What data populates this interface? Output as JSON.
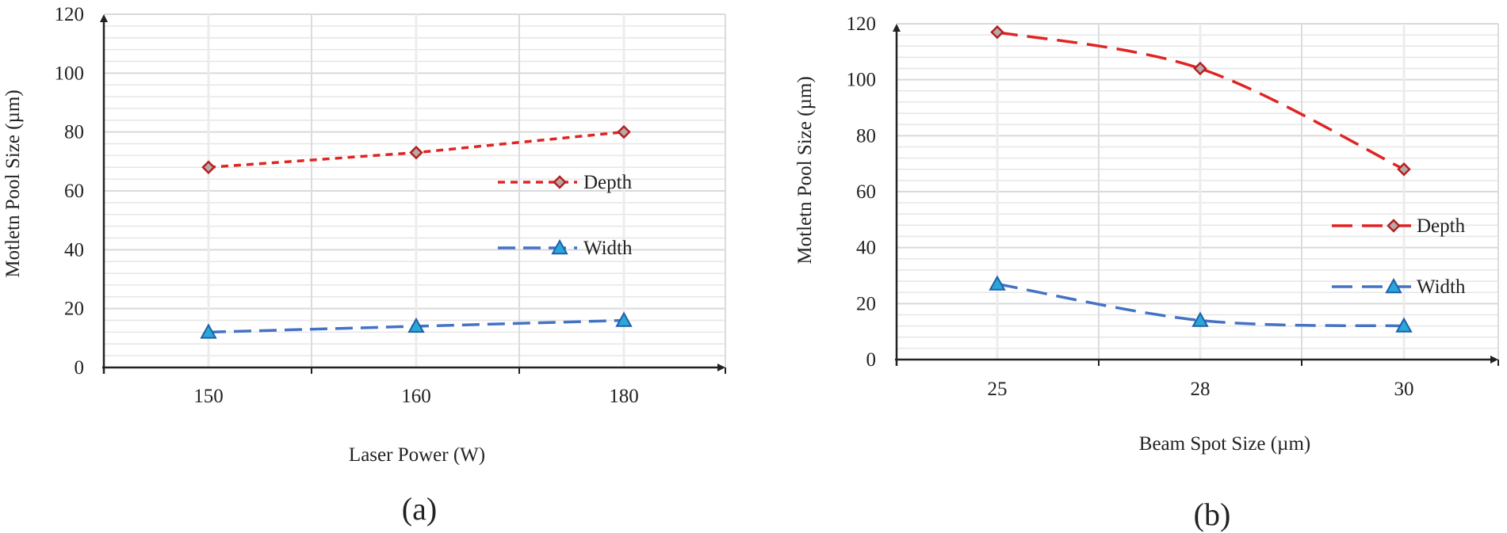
{
  "chart_data": [
    {
      "type": "line",
      "panel_label": "(a)",
      "categories": [
        "150",
        "160",
        "180"
      ],
      "series": [
        {
          "name": "Depth",
          "values": [
            68,
            73,
            80
          ],
          "color": "#e02424",
          "marker": "diamond",
          "marker_color": "#b8a9a9",
          "dash": "dashed"
        },
        {
          "name": "Width",
          "values": [
            12,
            14,
            16
          ],
          "color": "#4472c4",
          "marker": "triangle",
          "marker_color": "#2aa7d9",
          "dash": "long-dashed"
        }
      ],
      "title": "",
      "xlabel": "Laser Power (W)",
      "ylabel": "Motletn Pool Size (µm)",
      "ylim": [
        0,
        120
      ],
      "yticks": [
        "0",
        "20",
        "40",
        "60",
        "80",
        "100",
        "120"
      ],
      "grid": true,
      "legend": "center-right"
    },
    {
      "type": "line",
      "panel_label": "(b)",
      "categories": [
        "25",
        "28",
        "30"
      ],
      "series": [
        {
          "name": "Depth",
          "values": [
            117,
            104,
            68
          ],
          "color": "#e02424",
          "marker": "diamond",
          "marker_color": "#b8a9a9",
          "dash": "long-dashed"
        },
        {
          "name": "Width",
          "values": [
            27,
            14,
            12
          ],
          "color": "#4472c4",
          "marker": "triangle",
          "marker_color": "#2aa7d9",
          "dash": "long-dashed"
        }
      ],
      "title": "",
      "xlabel": "Beam Spot Size (µm)",
      "ylabel": "Motletn Pool Size (µm)",
      "ylim": [
        0,
        120
      ],
      "yticks": [
        "0",
        "20",
        "40",
        "60",
        "80",
        "100",
        "120"
      ],
      "grid": true,
      "legend": "lower-right"
    }
  ]
}
